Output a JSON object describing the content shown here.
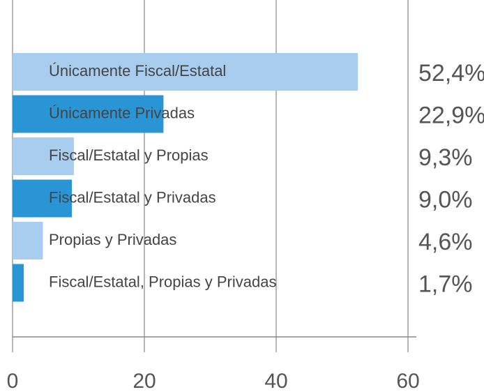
{
  "chart_data": {
    "type": "hbar",
    "categories": [
      "Únicamente Fiscal/Estatal",
      "Únicamente Privadas",
      "Fiscal/Estatal y Propias",
      "Fiscal/Estatal y Privadas",
      "Propias y Privadas",
      "Fiscal/Estatal, Propias y Privadas"
    ],
    "values": [
      52.4,
      22.9,
      9.3,
      9.0,
      4.6,
      1.7
    ],
    "value_labels": [
      "52,4%",
      "22,9%",
      "9,3%",
      "9,0%",
      "4,6%",
      "1,7%"
    ],
    "colors": [
      "#a9cdee",
      "#2a95d5",
      "#a9cdee",
      "#2a95d5",
      "#a9cdee",
      "#2a95d5"
    ],
    "xlim": [
      0,
      60
    ],
    "xticks": [
      0,
      20,
      40,
      60
    ],
    "grid": true
  }
}
